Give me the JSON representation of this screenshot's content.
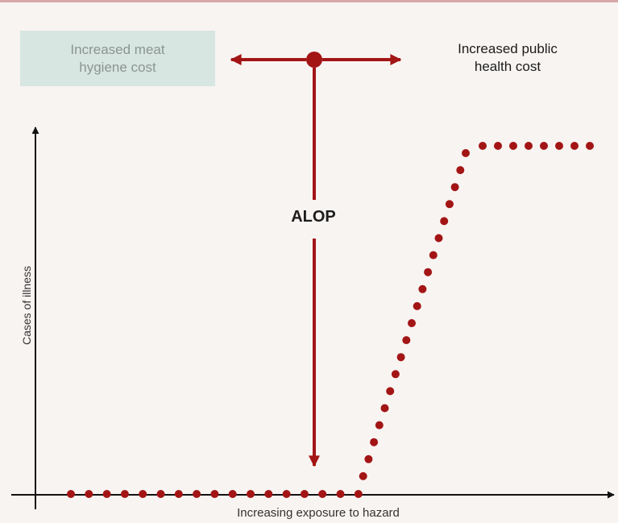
{
  "labels": {
    "meat_hygiene": [
      "Increased meat",
      "hygiene cost"
    ],
    "public_health": [
      "Increased public",
      "health cost"
    ],
    "alop": "ALOP",
    "y_axis": "Cases of illness",
    "x_axis": "Increasing exposure to hazard"
  },
  "colors": {
    "marker": "#a31515",
    "axis": "#111111",
    "meat_box": "#d8e6e2"
  }
}
